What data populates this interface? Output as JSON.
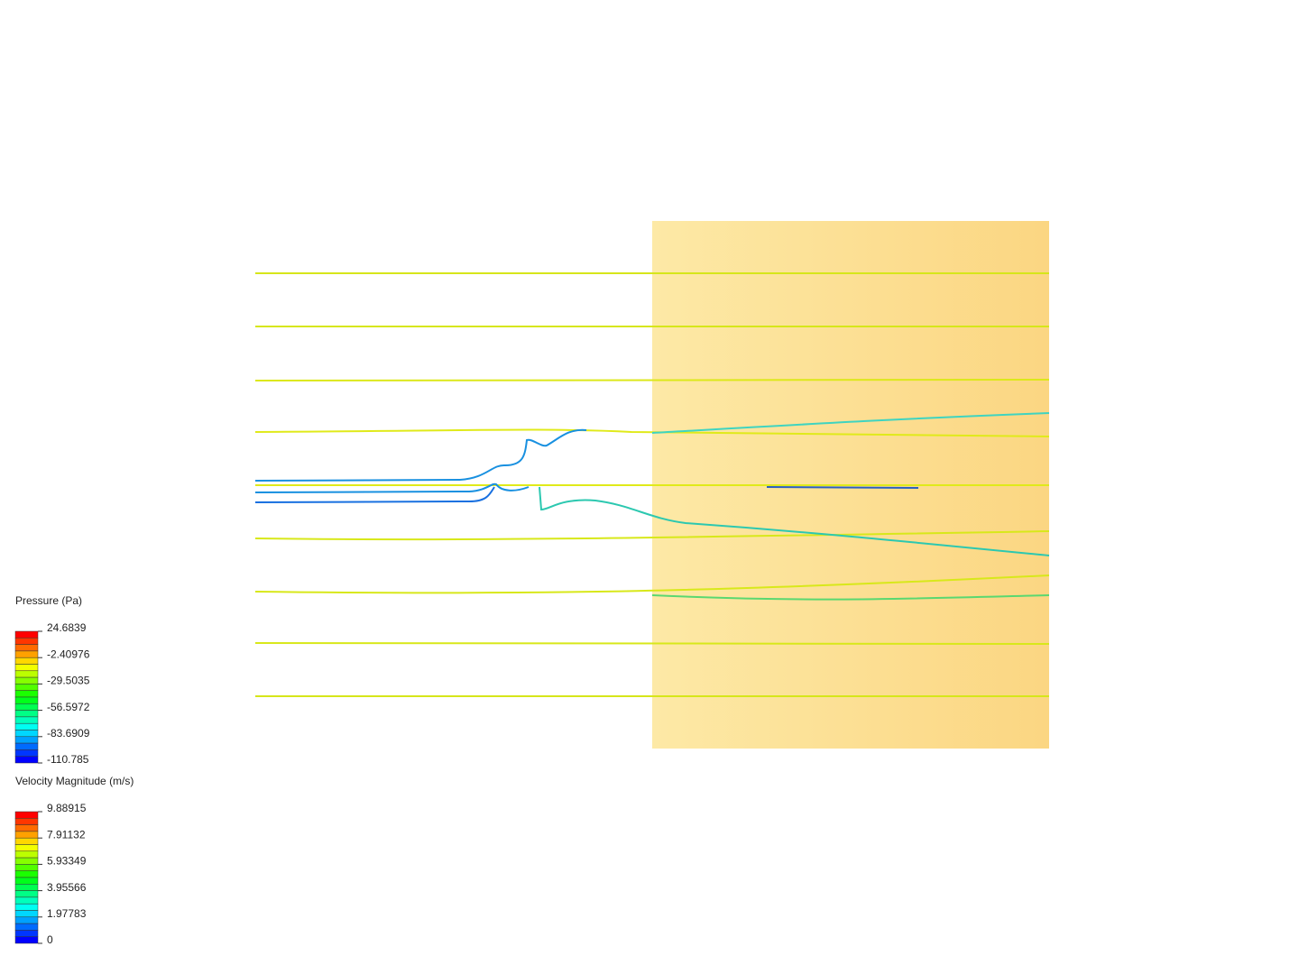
{
  "legends": [
    {
      "title": "Pressure (Pa)",
      "labels": [
        "24.6839",
        "-2.40976",
        "-29.5035",
        "-56.5972",
        "-83.6909",
        "-110.785"
      ]
    },
    {
      "title": "Velocity Magnitude (m/s)",
      "labels": [
        "9.88915",
        "7.91132",
        "5.93349",
        "3.95566",
        "1.97783",
        "0"
      ]
    }
  ]
}
